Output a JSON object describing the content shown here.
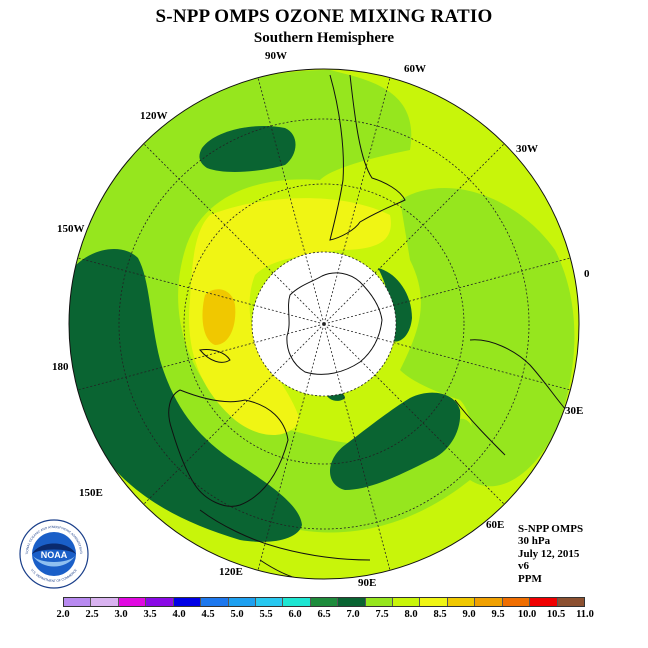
{
  "header": {
    "title": "S-NPP OMPS OZONE MIXING RATIO",
    "subtitle": "Southern Hemisphere"
  },
  "longitude_labels": {
    "w90": "90W",
    "w60": "60W",
    "w120": "120W",
    "w30": "30W",
    "w150": "150W",
    "zero": "0",
    "e180": "180",
    "e30": "30E",
    "e150": "150E",
    "e60": "60E",
    "e120": "120E",
    "e90": "90E"
  },
  "info": {
    "instrument": "S-NPP OMPS",
    "level": "30 hPa",
    "date": "July 12, 2015",
    "version": "v6",
    "units": "PPM"
  },
  "colorbar": {
    "ticks": [
      "2.0",
      "2.5",
      "3.0",
      "3.5",
      "4.0",
      "4.5",
      "5.0",
      "5.5",
      "6.0",
      "6.5",
      "7.0",
      "7.5",
      "8.0",
      "8.5",
      "9.0",
      "9.5",
      "10.0",
      "10.5",
      "11.0"
    ],
    "colors": [
      "#b88af0",
      "#d9b3f0",
      "#e10ae1",
      "#8a0ae6",
      "#0000e6",
      "#1e78ee",
      "#1ea0f0",
      "#28c8f0",
      "#1ee6d2",
      "#1e8c3c",
      "#0a6432",
      "#96e61e",
      "#c8f50a",
      "#f0f514",
      "#f0c800",
      "#f0a000",
      "#f06e00",
      "#f00000",
      "#8c5030"
    ]
  },
  "logo": {
    "text": "NOAA",
    "ring_text": "NATIONAL OCEANIC AND ATMOSPHERIC ADMINISTRATION",
    "ring_text_bottom": "U.S. DEPARTMENT OF COMMERCE"
  },
  "map_colors": {
    "background": "#c8f50a",
    "mid": "#96e61e",
    "high": "#f0f514",
    "peak": "#f0c800",
    "low": "#0a6432",
    "pole_mask": "#ffffff"
  }
}
